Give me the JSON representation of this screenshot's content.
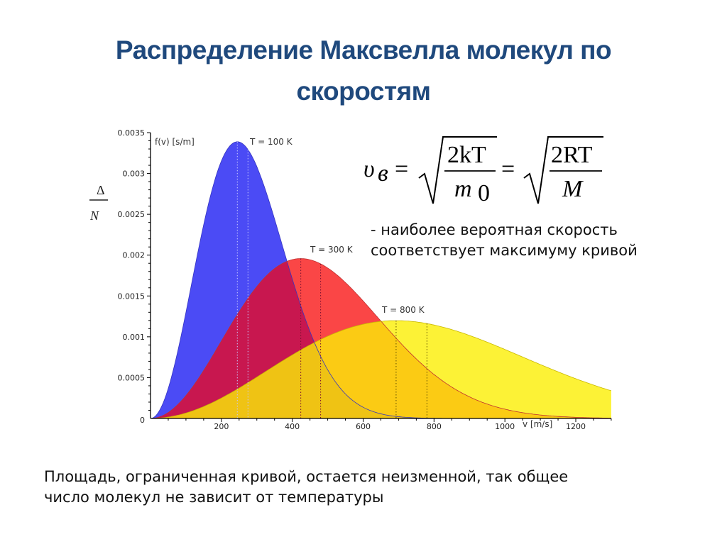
{
  "slide": {
    "title_line1": "Распределение Максвелла молекул по",
    "title_line2": "скоростям",
    "formula": {
      "lhs": "υ",
      "lhs_subscript": "в",
      "eq": "=",
      "frac1_num": "2kT",
      "frac1_den": "m",
      "frac1_den_sub": "0",
      "frac2_num": "2RT",
      "frac2_den": "M"
    },
    "note_line1": "- наиболее вероятная скорость",
    "note_line2": "соответствует максимуму кривой",
    "footer_line1": "Площадь, ограниченная кривой, остается неизменной, так общее",
    "footer_line2": "число молекул не зависит от температуры",
    "side_fragment": {
      "top": "Δ",
      "bottom": "N"
    }
  },
  "chart_data": {
    "type": "area",
    "title": "",
    "xlabel": "v [m/s]",
    "ylabel": "f(v) [s/m]",
    "xlim": [
      0,
      1300
    ],
    "ylim": [
      0,
      0.0035
    ],
    "x_ticks": [
      200,
      400,
      600,
      800,
      1000,
      1200
    ],
    "x_tick_labels": [
      "200",
      "400",
      "600",
      "800",
      "1000",
      "1200"
    ],
    "y_ticks": [
      0,
      0.0005,
      0.001,
      0.0015,
      0.002,
      0.0025,
      0.003,
      0.0035
    ],
    "y_tick_labels": [
      "0",
      "0.0005",
      "0.001",
      "0.0015",
      "0.002",
      "0.0025",
      "0.003",
      "0.0035"
    ],
    "grid": false,
    "legend": "inline labels",
    "series": [
      {
        "name": "T = 100 K",
        "color": "#4b4bf5",
        "most_probable_speed": 245,
        "mean_speed": 275,
        "peak_value": 0.0034,
        "label_pos": [
          400,
          0.0034
        ]
      },
      {
        "name": "T = 300 K",
        "color": "#fa4646",
        "most_probable_speed": 424,
        "mean_speed": 480,
        "peak_value": 0.00196,
        "label_pos": [
          590,
          0.00205
        ]
      },
      {
        "name": "T = 800 K",
        "color": "#fcf236",
        "most_probable_speed": 693,
        "mean_speed": 780,
        "peak_value": 0.0012,
        "label_pos": [
          745,
          0.00133
        ]
      }
    ],
    "overlap_colors": {
      "blue_red": "#c8174f",
      "red_yellow": "#fbcb14",
      "all": "#efc314"
    },
    "annotations": [
      "dotted vertical lines at most probable and mean speed for each curve"
    ]
  }
}
